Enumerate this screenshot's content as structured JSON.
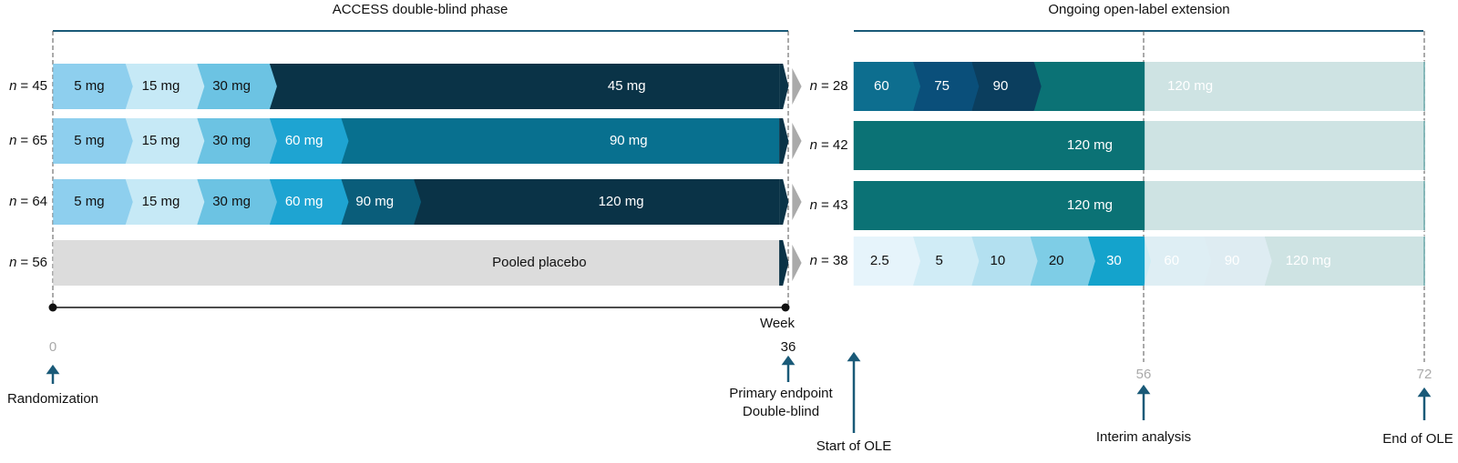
{
  "header": {
    "double_blind_title": "ACCESS double-blind phase",
    "ole_title": "Ongoing open-label extension"
  },
  "n_symbol": "n",
  "double_blind_rows": [
    {
      "n": "= 45",
      "segments": [
        {
          "label": "5 mg",
          "color": "#8ecfee"
        },
        {
          "label": "15 mg",
          "color": "#c6e9f6"
        },
        {
          "label": "30 mg",
          "color": "#6cc3e3"
        },
        {
          "label": "45 mg",
          "color": "#0a3347"
        }
      ]
    },
    {
      "n": "= 65",
      "segments": [
        {
          "label": "5 mg",
          "color": "#8ecfee"
        },
        {
          "label": "15 mg",
          "color": "#c6e9f6"
        },
        {
          "label": "30 mg",
          "color": "#6cc3e3"
        },
        {
          "label": "60 mg",
          "color": "#1ea4d2"
        },
        {
          "label": "90 mg",
          "color": "#08708f"
        }
      ]
    },
    {
      "n": "= 64",
      "segments": [
        {
          "label": "5 mg",
          "color": "#8ecfee"
        },
        {
          "label": "15 mg",
          "color": "#c6e9f6"
        },
        {
          "label": "30 mg",
          "color": "#6cc3e3"
        },
        {
          "label": "60 mg",
          "color": "#1ea4d2"
        },
        {
          "label": "90 mg",
          "color": "#0a5d7a"
        },
        {
          "label": "120 mg",
          "color": "#0a3347"
        }
      ]
    },
    {
      "n": "= 56",
      "segments": [
        {
          "label": "Pooled placebo",
          "color": "#dcdcdc"
        }
      ]
    }
  ],
  "ole_rows": [
    {
      "n": "= 28",
      "segments": [
        {
          "label": "60",
          "color": "#0d6e8f"
        },
        {
          "label": "75",
          "color": "#0a4f7a"
        },
        {
          "label": "90",
          "color": "#0b3e5e"
        },
        {
          "label": "120 mg",
          "color": "#0b7275"
        }
      ]
    },
    {
      "n": "= 42",
      "segments": [
        {
          "label": "120 mg",
          "color": "#0b7275"
        }
      ]
    },
    {
      "n": "= 43",
      "segments": [
        {
          "label": "120 mg",
          "color": "#0b7275"
        }
      ]
    },
    {
      "n": "= 38",
      "segments": [
        {
          "label": "2.5",
          "color": "#e6f4fb"
        },
        {
          "label": "5",
          "color": "#d0ecf6"
        },
        {
          "label": "10",
          "color": "#b3e0f0"
        },
        {
          "label": "20",
          "color": "#7ecde6"
        },
        {
          "label": "30",
          "color": "#14a3cc"
        },
        {
          "label": "60",
          "color": "#5aa9c6"
        },
        {
          "label": "90",
          "color": "#5aa0bd"
        },
        {
          "label": "120 mg",
          "color": "#0b7275"
        }
      ]
    }
  ],
  "timeline": {
    "week_label": "Week",
    "week_0": "0",
    "week_36": "36",
    "week_56": "56",
    "week_72": "72"
  },
  "milestones": {
    "randomization": "Randomization",
    "primary_endpoint": "Primary endpoint",
    "double_blind": "Double-blind",
    "start_ole": "Start of OLE",
    "interim_analysis": "Interim analysis",
    "end_ole": "End of OLE"
  }
}
